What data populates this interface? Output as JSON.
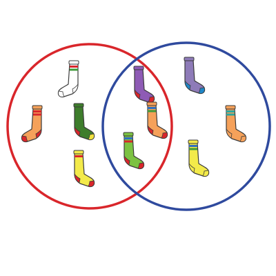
{
  "venn": {
    "left_circle": {
      "color": "#d9262b"
    },
    "right_circle": {
      "color": "#2f4a9e"
    }
  },
  "socks": [
    {
      "id": "white-sock",
      "region": "left",
      "body": "#ffffff",
      "heel": "#ffffff",
      "toe": "#ffffff",
      "cuff": "#ffffff",
      "stripes": [
        "#d9262b",
        "#3f9a3a"
      ]
    },
    {
      "id": "orange-sock",
      "region": "left",
      "body": "#f5a15a",
      "heel": "#d9262b",
      "toe": "#d9262b",
      "cuff": "#f5a15a",
      "stripes": [
        "#d9262b",
        "#d9262b"
      ]
    },
    {
      "id": "green-sock",
      "region": "left",
      "body": "#3e7d2c",
      "heel": "#d9262b",
      "toe": "#f0e140",
      "cuff": "#3e7d2c",
      "stripes": []
    },
    {
      "id": "yellow-sock",
      "region": "left",
      "body": "#f3ea4a",
      "heel": "#d9262b",
      "toe": "#d9262b",
      "cuff": "#f3ea4a",
      "stripes": [
        "#d9262b"
      ]
    },
    {
      "id": "purple-sock-left",
      "region": "intersection",
      "body": "#8e5bb5",
      "heel": "#d9262b",
      "toe": "#d9262b",
      "cuff": "#8e5bb5",
      "stripes": []
    },
    {
      "id": "orange-striped-sock",
      "region": "intersection",
      "body": "#f5a15a",
      "heel": "#d9262b",
      "toe": "#d9262b",
      "cuff": "#f5a15a",
      "stripes": [
        "#2f6fbf",
        "#3f9a3a"
      ]
    },
    {
      "id": "light-green-sock",
      "region": "intersection",
      "body": "#7cc242",
      "heel": "#d9262b",
      "toe": "#d9262b",
      "cuff": "#7cc242",
      "stripes": [
        "#2f6fbf",
        "#d9262b"
      ]
    },
    {
      "id": "lavender-sock",
      "region": "right",
      "body": "#8e7bb8",
      "heel": "#1f86c7",
      "toe": "#1f86c7",
      "cuff": "#8e7bb8",
      "stripes": []
    },
    {
      "id": "orange-teal-sock",
      "region": "right",
      "body": "#f5a15a",
      "heel": "#f5a15a",
      "toe": "#f5a15a",
      "cuff": "#f5a15a",
      "stripes": [
        "#2aa7a0",
        "#2aa7a0"
      ]
    },
    {
      "id": "yellow-blue-sock",
      "region": "right",
      "body": "#f3ea4a",
      "heel": "#f3ea4a",
      "toe": "#f3ea4a",
      "cuff": "#f3ea4a",
      "stripes": [
        "#2f6fbf",
        "#3f9a3a"
      ]
    }
  ]
}
